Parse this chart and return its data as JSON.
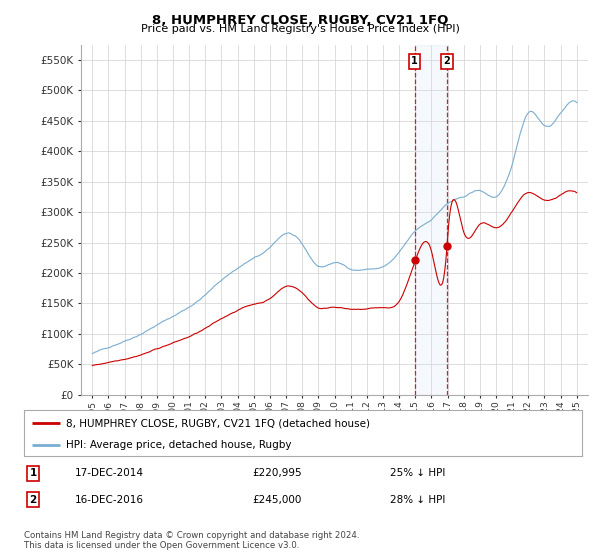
{
  "title": "8, HUMPHREY CLOSE, RUGBY, CV21 1FQ",
  "subtitle": "Price paid vs. HM Land Registry's House Price Index (HPI)",
  "legend_line1": "8, HUMPHREY CLOSE, RUGBY, CV21 1FQ (detached house)",
  "legend_line2": "HPI: Average price, detached house, Rugby",
  "annotation1_date": "17-DEC-2014",
  "annotation1_price": "£220,995",
  "annotation1_hpi": "25% ↓ HPI",
  "annotation1_year": 2014.96,
  "annotation1_value": 220995,
  "annotation2_date": "16-DEC-2016",
  "annotation2_price": "£245,000",
  "annotation2_hpi": "28% ↓ HPI",
  "annotation2_year": 2016.96,
  "annotation2_value": 245000,
  "footnote": "Contains HM Land Registry data © Crown copyright and database right 2024.\nThis data is licensed under the Open Government Licence v3.0.",
  "red_color": "#cc0000",
  "blue_color": "#7aadcf",
  "highlight_color": "#ddeeff",
  "vline_color": "#cc0000",
  "ylim": [
    0,
    575000
  ],
  "yticks": [
    0,
    50000,
    100000,
    150000,
    200000,
    250000,
    300000,
    350000,
    400000,
    450000,
    500000,
    550000
  ],
  "ytick_labels": [
    "£0",
    "£50K",
    "£100K",
    "£150K",
    "£200K",
    "£250K",
    "£300K",
    "£350K",
    "£400K",
    "£450K",
    "£500K",
    "£550K"
  ],
  "hpi_keypoints_year": [
    1995,
    1996,
    1997,
    1998,
    1999,
    2000,
    2001,
    2002,
    2003,
    2004,
    2005,
    2006,
    2007,
    2008,
    2009,
    2010,
    2011,
    2012,
    2013,
    2014,
    2015,
    2016,
    2017,
    2018,
    2019,
    2020,
    2021,
    2022,
    2023,
    2024,
    2025
  ],
  "hpi_keypoints_val": [
    68000,
    78000,
    90000,
    103000,
    118000,
    132000,
    148000,
    168000,
    192000,
    212000,
    228000,
    244000,
    268000,
    248000,
    212000,
    218000,
    208000,
    208000,
    212000,
    234000,
    268000,
    288000,
    314000,
    324000,
    334000,
    324000,
    375000,
    462000,
    442000,
    462000,
    480000
  ],
  "red_keypoints_year": [
    1995,
    1996,
    1997,
    1998,
    1999,
    2000,
    2001,
    2002,
    2003,
    2004,
    2005,
    2006,
    2007,
    2008,
    2009,
    2010,
    2011,
    2012,
    2013,
    2014,
    2014.96,
    2016,
    2016.96,
    2017,
    2018,
    2019,
    2020,
    2021,
    2022,
    2023,
    2024,
    2025
  ],
  "red_keypoints_val": [
    48000,
    54000,
    61000,
    69000,
    79000,
    89000,
    99000,
    112000,
    127000,
    142000,
    152000,
    162000,
    182000,
    172000,
    148000,
    150000,
    146000,
    146000,
    148000,
    158000,
    220995,
    240000,
    245000,
    260000,
    270000,
    280000,
    273000,
    300000,
    332000,
    318000,
    328000,
    332000
  ]
}
